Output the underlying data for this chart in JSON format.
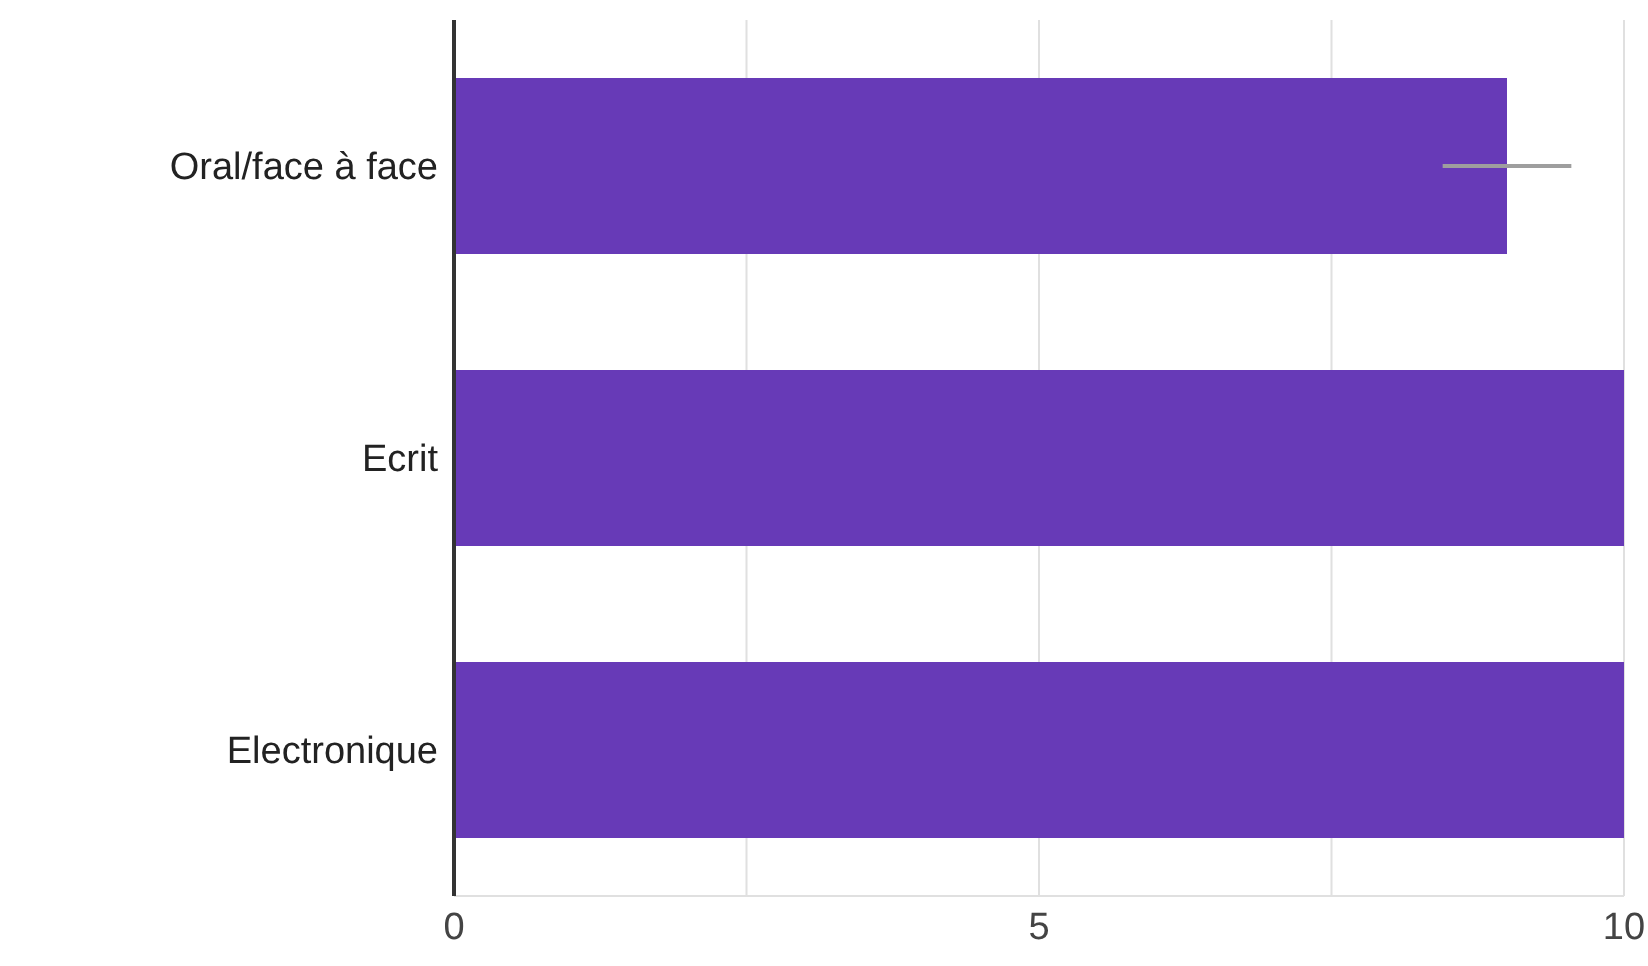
{
  "chart_data": {
    "type": "bar",
    "orientation": "horizontal",
    "categories": [
      "Oral/face à face",
      "Ecrit",
      "Electronique"
    ],
    "values": [
      9,
      10,
      10
    ],
    "color": "#673ab7",
    "errors": [
      0.55,
      null,
      null
    ],
    "xlim": [
      0,
      10
    ],
    "xticks": [
      0,
      {
        "value": 2.5,
        "label": null
      },
      5,
      {
        "value": 7.5,
        "label": null
      },
      10
    ],
    "grid": "x"
  }
}
